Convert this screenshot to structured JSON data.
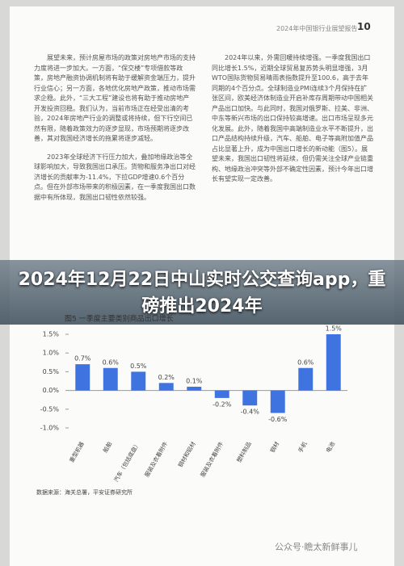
{
  "header": {
    "title": "2024年中国银行业展望报告",
    "page": "10"
  },
  "left_paragraphs": [
    "展望未来，预计房屋市场的政策对房地产市场的支持力度将进一步加大。一方面，“保交楼”专项借款等政策，房地产融资协调机制将有助于缓解资金端压力，提升行业信心；另一方面，各地优化房地产政策，推动市场需求企稳。此外，“三大工程”建设也将有助于推动房地产开发投资回稳。我们认为，当前市场正在经受出清的考验，2024年房地产行业的调整或将持续，但下行空间已然有限，随着政策效力的逐步显现，市场预期将逐步改善，其对我国经济增长的拖累将逐步减轻。",
    "2023年全球经济下行压力加大，叠加地缘政治等全球影响加大，导致我国出口承压。货物和服务净出口对经济增长的贡献率为-11.4%，下拉GDP增速0.6个百分点。但在外部市场带来的积极因素，在一季度我国出口数据中有所体现，我国出口韧性依然较强。"
  ],
  "right_paragraphs": [
    "2024年以来，外需回暖持续增强。一季度我国出口同比增长1.5%，近期全球贸易复苏势头明显增强，3月WTO国际货物贸易晴雨表指数提升至100.6，高于去年同期的4个百分点。全球制造业PMI连续3个月保持在扩张区间，欧美经济体制造业开启补库存周期带动中国相关产品出口加快。与此同时，我国对俄罗斯、拉美、非洲、中东等新兴市场的出口保持较高增速。出口市场呈现多元化发展。此外，随着我国中高端制造业水平不断提升，出口产品结构持续升级，汽车、船舶、电子等高附加值产品占比显著上升，成为中国出口增长的新动能（图5）。展望未来，我国出口韧性将延续，但仍需关注全球产业链重构、地缘政治冲突等外部不确定性因素，预计今年出口增长有望实现一定改善。"
  ],
  "overlay_title": "2024年12月22日中山实时公交查询app，重磅推出2024年",
  "chart_data": {
    "type": "bar",
    "title": "图5 一季度主要类别商品出口增长",
    "categories": [
      "重型机器",
      "船舶",
      "汽车（包括底盘）",
      "服装及衣着附件",
      "钢材和铝材",
      "服装及衣着附件",
      "塑料制品",
      "钢材",
      "手机",
      "电池"
    ],
    "values": [
      0.7,
      0.6,
      0.5,
      0.2,
      0.1,
      -0.2,
      -0.4,
      -0.6,
      0.6,
      1.5
    ],
    "value_labels": [
      "0.7%",
      "0.6%",
      "0.5%",
      "0.2%",
      "0.1%",
      "-0.2%",
      "-0.4%",
      "-0.6%",
      "0.6%",
      "1.5%"
    ],
    "color": "#3f73e0",
    "ylim": [
      -1,
      1.5
    ],
    "yticks": [
      {
        "value": 1.5,
        "label": "1.5%"
      },
      {
        "value": 1,
        "label": "1.0%"
      },
      {
        "value": 0.5,
        "label": "0.5%"
      },
      {
        "value": 0,
        "label": "0.0%"
      },
      {
        "value": -0.5,
        "label": "-0.5%"
      },
      {
        "value": -1,
        "label": "-1.0%"
      }
    ]
  },
  "source": "数据来源：海关总署，平安证券研究所",
  "watermark": "公众号·瞻太新鲜事儿"
}
